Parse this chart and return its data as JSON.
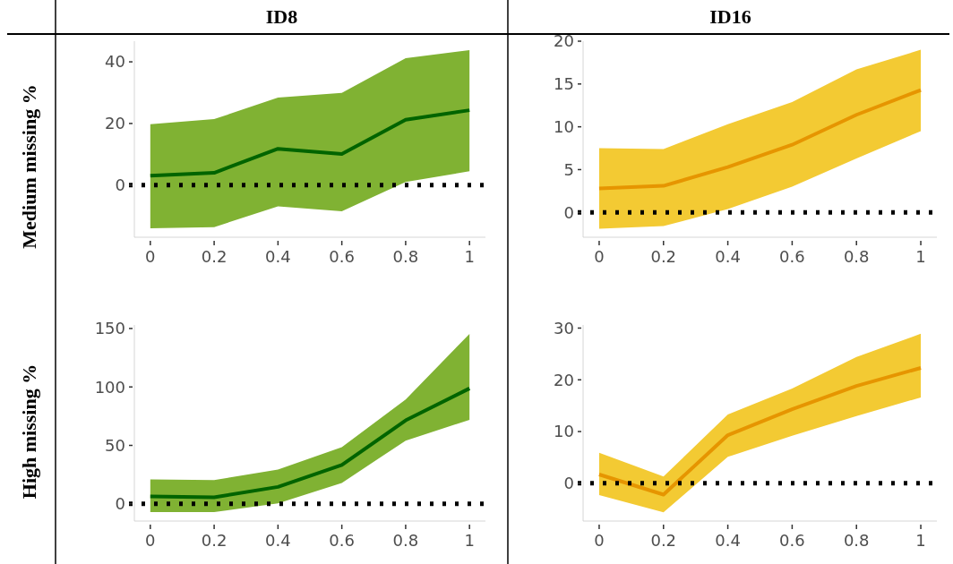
{
  "chart_data": [
    {
      "type": "line",
      "title": "ID8",
      "ylabel": "Medium missing %",
      "x": [
        0,
        0.2,
        0.4,
        0.6,
        0.8,
        1
      ],
      "xlim": [
        -0.05,
        1.05
      ],
      "xticks": [
        0,
        0.2,
        0.4,
        0.6,
        0.8,
        1
      ],
      "ylim": [
        -16.9,
        46.7
      ],
      "yticks": [
        0,
        20,
        40
      ],
      "ref_lines": [
        {
          "axis": "y",
          "value": 0,
          "line_style": "dotted",
          "color": "#000000"
        }
      ],
      "series": [
        {
          "color": "#006400",
          "values": [
            3.1,
            4.0,
            11.8,
            10.1,
            21.2,
            24.3
          ],
          "lower": [
            -14,
            -13.6,
            -6.9,
            -8.5,
            1,
            4.5
          ],
          "upper": [
            19.8,
            21.4,
            28.4,
            29.9,
            41.2,
            43.8
          ]
        }
      ]
    },
    {
      "type": "line",
      "title": "ID16",
      "x": [
        0,
        0.2,
        0.4,
        0.6,
        0.8,
        1
      ],
      "xlim": [
        -0.05,
        1.05
      ],
      "xticks": [
        0,
        0.2,
        0.4,
        0.6,
        0.8,
        1
      ],
      "ylim": [
        -2.9,
        20.0
      ],
      "yticks": [
        0,
        5,
        10,
        15,
        20
      ],
      "ref_lines": [
        {
          "axis": "y",
          "value": 0,
          "line_style": "dotted",
          "color": "#000000"
        }
      ],
      "series": [
        {
          "color": "#e69500",
          "values": [
            2.8,
            3.1,
            5.3,
            7.9,
            11.4,
            14.3
          ],
          "lower": [
            -1.9,
            -1.6,
            0.4,
            3.0,
            6.3,
            9.5
          ],
          "upper": [
            7.5,
            7.4,
            10.3,
            12.9,
            16.7,
            19.0
          ]
        }
      ]
    },
    {
      "type": "line",
      "ylabel": "High missing %",
      "x": [
        0,
        0.2,
        0.4,
        0.6,
        0.8,
        1
      ],
      "xlim": [
        -0.05,
        1.05
      ],
      "xticks": [
        0,
        0.2,
        0.4,
        0.6,
        0.8,
        1
      ],
      "ylim": [
        -14.7,
        153
      ],
      "yticks": [
        0,
        50,
        100,
        150
      ],
      "ref_lines": [
        {
          "axis": "y",
          "value": 0,
          "line_style": "dotted",
          "color": "#000000"
        }
      ],
      "series": [
        {
          "color": "#006400",
          "values": [
            6.4,
            5.6,
            14.5,
            33.2,
            71.4,
            98.7
          ],
          "lower": [
            -7.1,
            -7.1,
            0.5,
            17.9,
            54.1,
            71.9
          ],
          "upper": [
            20.9,
            20.4,
            29.3,
            48.5,
            89.3,
            145.4
          ]
        }
      ]
    },
    {
      "type": "line",
      "x": [
        0,
        0.2,
        0.4,
        0.6,
        0.8,
        1
      ],
      "xlim": [
        -0.05,
        1.05
      ],
      "xticks": [
        0,
        0.2,
        0.4,
        0.6,
        0.8,
        1
      ],
      "ylim": [
        -7.3,
        30.6
      ],
      "yticks": [
        0,
        10,
        20,
        30
      ],
      "ref_lines": [
        {
          "axis": "y",
          "value": 0,
          "line_style": "dotted",
          "color": "#000000"
        }
      ],
      "series": [
        {
          "color": "#e69500",
          "values": [
            1.7,
            -2.2,
            9.3,
            14.3,
            18.8,
            22.3
          ],
          "lower": [
            -2.3,
            -5.6,
            5.1,
            9.2,
            13.0,
            16.6
          ],
          "upper": [
            5.9,
            1.3,
            13.3,
            18.3,
            24.4,
            28.9
          ]
        }
      ]
    }
  ]
}
